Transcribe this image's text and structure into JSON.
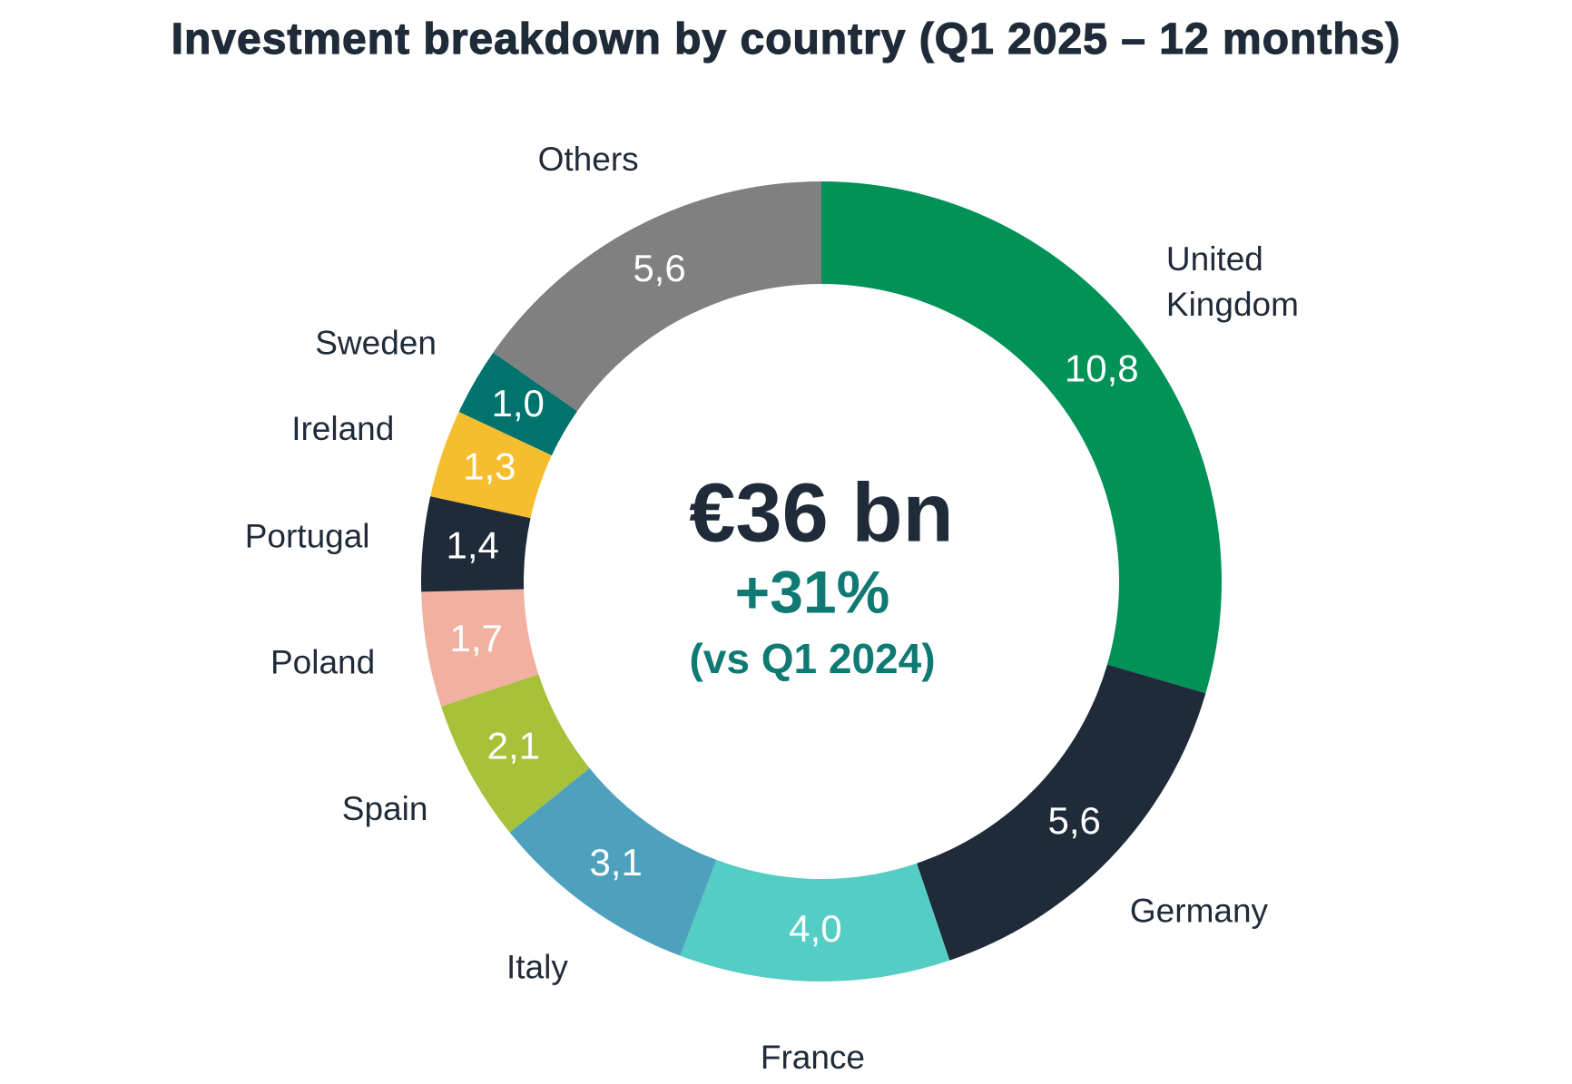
{
  "chart_data": {
    "type": "donut",
    "title": "Investment breakdown by country (Q1 2025 – 12 months)",
    "categories": [
      "United Kingdom",
      "Germany",
      "France",
      "Italy",
      "Spain",
      "Poland",
      "Portugal",
      "Ireland",
      "Sweden",
      "Others"
    ],
    "values": [
      10.8,
      5.6,
      4.0,
      3.1,
      2.1,
      1.7,
      1.4,
      1.3,
      1.0,
      5.6
    ],
    "value_labels": [
      "10,8",
      "5,6",
      "4,0",
      "3,1",
      "2,1",
      "1,7",
      "1,4",
      "1,3",
      "1,0",
      "5,6"
    ],
    "colors": [
      "#009257",
      "#1f2b38",
      "#54cdc4",
      "#4ea1bd",
      "#a7c13a",
      "#f2b0a0",
      "#1f2b38",
      "#f6be2f",
      "#00736d",
      "#808080"
    ],
    "annotations": [
      "€36 bn",
      "+31%",
      "(vs Q1 2024)"
    ]
  }
}
